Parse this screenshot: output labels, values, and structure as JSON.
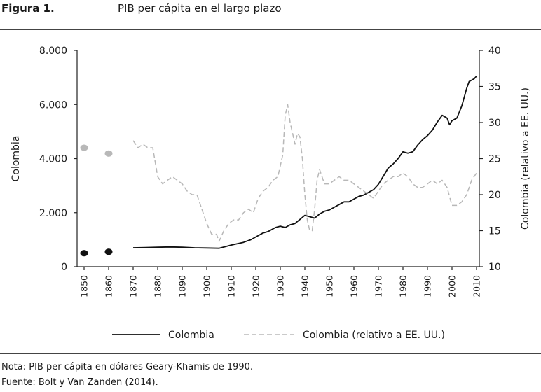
{
  "header": {
    "figure_label": "Figura 1.",
    "title": "PIB per cápita en el largo plazo"
  },
  "notes": {
    "note": "Nota: PIB per cápita en dólares Geary-Khamis de 1990.",
    "source": "Fuente: Bolt y Van Zanden (2014)."
  },
  "chart_data": {
    "type": "line",
    "title": "PIB per cápita en el largo plazo",
    "xlabel": "",
    "ylabel": "Colombia",
    "y2label": "Colombia (relativo a EE. UU.)",
    "xlim": [
      1850,
      2010
    ],
    "ylim": [
      0,
      8000
    ],
    "y2lim": [
      10,
      40
    ],
    "x_ticks": [
      1850,
      1860,
      1870,
      1880,
      1890,
      1900,
      1910,
      1920,
      1930,
      1940,
      1950,
      1960,
      1970,
      1980,
      1990,
      2000,
      2010
    ],
    "y_ticks": [
      {
        "value": 0,
        "label": "0"
      },
      {
        "value": 2000,
        "label": "2.000"
      },
      {
        "value": 4000,
        "label": "4.000"
      },
      {
        "value": 6000,
        "label": "6.000"
      },
      {
        "value": 8000,
        "label": "8.000"
      }
    ],
    "y2_ticks": [
      {
        "value": 10,
        "label": "10"
      },
      {
        "value": 15,
        "label": "15"
      },
      {
        "value": 20,
        "label": "20"
      },
      {
        "value": 25,
        "label": "25"
      },
      {
        "value": 30,
        "label": "30"
      },
      {
        "value": 35,
        "label": "35"
      },
      {
        "value": 40,
        "label": "40"
      }
    ],
    "series": [
      {
        "name": "Colombia",
        "axis": "left",
        "style": "solid",
        "color": "#111111",
        "x": [
          1870,
          1875,
          1880,
          1885,
          1890,
          1895,
          1900,
          1905,
          1910,
          1915,
          1918,
          1920,
          1923,
          1925,
          1928,
          1930,
          1932,
          1934,
          1936,
          1938,
          1940,
          1942,
          1944,
          1946,
          1948,
          1950,
          1952,
          1954,
          1956,
          1958,
          1960,
          1962,
          1964,
          1966,
          1968,
          1970,
          1972,
          1974,
          1976,
          1978,
          1980,
          1982,
          1984,
          1986,
          1988,
          1990,
          1992,
          1994,
          1996,
          1998,
          1999,
          2000,
          2002,
          2004,
          2006,
          2007,
          2008,
          2009,
          2010
        ],
        "values": [
          700,
          710,
          720,
          730,
          720,
          700,
          690,
          680,
          800,
          900,
          1000,
          1100,
          1250,
          1300,
          1450,
          1500,
          1450,
          1550,
          1600,
          1750,
          1900,
          1850,
          1800,
          1950,
          2050,
          2100,
          2200,
          2300,
          2400,
          2400,
          2500,
          2600,
          2650,
          2750,
          2850,
          3050,
          3350,
          3650,
          3800,
          4000,
          4250,
          4200,
          4250,
          4500,
          4700,
          4850,
          5050,
          5350,
          5600,
          5500,
          5250,
          5400,
          5500,
          5950,
          6600,
          6850,
          6900,
          6950,
          7050
        ]
      },
      {
        "name": "Colombia (relativo a EE. UU.)",
        "axis": "right",
        "style": "dashed",
        "color": "#b8b8b8",
        "x": [
          1870,
          1872,
          1874,
          1876,
          1878,
          1880,
          1882,
          1884,
          1886,
          1888,
          1890,
          1892,
          1894,
          1896,
          1898,
          1900,
          1902,
          1904,
          1905,
          1907,
          1909,
          1911,
          1913,
          1915,
          1917,
          1919,
          1921,
          1923,
          1925,
          1927,
          1929,
          1931,
          1932,
          1933,
          1934,
          1935,
          1936,
          1937,
          1938,
          1939,
          1940,
          1941,
          1942,
          1943,
          1944,
          1945,
          1946,
          1947,
          1948,
          1950,
          1952,
          1954,
          1956,
          1958,
          1960,
          1962,
          1964,
          1966,
          1968,
          1970,
          1972,
          1974,
          1976,
          1978,
          1980,
          1982,
          1984,
          1986,
          1988,
          1990,
          1992,
          1994,
          1996,
          1998,
          2000,
          2002,
          2004,
          2006,
          2008,
          2010
        ],
        "values": [
          27.5,
          26.5,
          27,
          26.5,
          26.5,
          22.5,
          21.5,
          22,
          22.5,
          22,
          21.5,
          20.5,
          20,
          20,
          18,
          16,
          14.5,
          14.5,
          13.5,
          15,
          16,
          16.5,
          16.5,
          17.5,
          18,
          17.5,
          19.5,
          20.5,
          21,
          22,
          22.5,
          25.5,
          31,
          32.5,
          30,
          28.5,
          27,
          28.5,
          28,
          25,
          20,
          16.5,
          15,
          15,
          18,
          22,
          23.5,
          22.5,
          21.5,
          21.5,
          22,
          22.5,
          22,
          22,
          21.5,
          21,
          20.5,
          20,
          19.5,
          20.5,
          21.5,
          22,
          22.5,
          22.5,
          23,
          22.5,
          21.5,
          21,
          21,
          21.5,
          22,
          21.5,
          22,
          21,
          18.5,
          18.5,
          19,
          20,
          22,
          23
        ]
      }
    ],
    "points": [
      {
        "name": "Colombia 1850",
        "series": "Colombia",
        "axis": "left",
        "x": 1850,
        "value": 500,
        "color": "#111111"
      },
      {
        "name": "Colombia 1860",
        "series": "Colombia",
        "axis": "left",
        "x": 1860,
        "value": 550,
        "color": "#111111"
      },
      {
        "name": "Colombia (relativo a EE. UU.) 1850",
        "series": "Colombia (relativo a EE. UU.)",
        "axis": "right",
        "x": 1850,
        "value": 26.5,
        "color": "#b8b8b8"
      },
      {
        "name": "Colombia (relativo a EE. UU.) 1860",
        "series": "Colombia (relativo a EE. UU.)",
        "axis": "right",
        "x": 1860,
        "value": 25.7,
        "color": "#b8b8b8"
      }
    ],
    "legend": {
      "placement": "bottom",
      "entries": [
        "Colombia",
        "Colombia (relativo a EE. UU.)"
      ]
    }
  }
}
